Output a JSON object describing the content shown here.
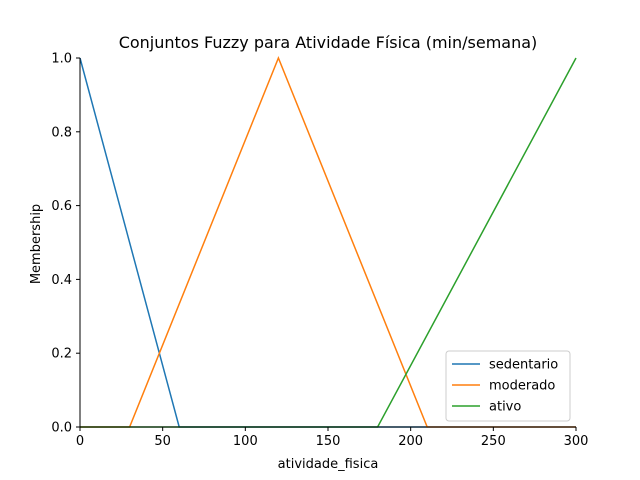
{
  "chart_data": {
    "type": "line",
    "title": "Conjuntos Fuzzy para Atividade Física (min/semana)",
    "xlabel": "atividade_fisica",
    "ylabel": "Membership",
    "xlim": [
      0,
      300
    ],
    "ylim": [
      0,
      1.0
    ],
    "xticks": [
      0,
      50,
      100,
      150,
      200,
      250,
      300
    ],
    "xtick_labels": [
      "0",
      "50",
      "100",
      "150",
      "200",
      "250",
      "300"
    ],
    "yticks": [
      0.0,
      0.2,
      0.4,
      0.6,
      0.8,
      1.0
    ],
    "ytick_labels": [
      "0.0",
      "0.2",
      "0.4",
      "0.6",
      "0.8",
      "1.0"
    ],
    "grid": false,
    "legend_position": "lower-right",
    "series": [
      {
        "name": "sedentario",
        "color": "#1f77b4",
        "x": [
          0,
          60,
          300
        ],
        "y": [
          1,
          0,
          0
        ]
      },
      {
        "name": "moderado",
        "color": "#ff7f0e",
        "x": [
          0,
          30,
          120,
          210,
          300
        ],
        "y": [
          0,
          0,
          1,
          0,
          0
        ]
      },
      {
        "name": "ativo",
        "color": "#2ca02c",
        "x": [
          0,
          180,
          300
        ],
        "y": [
          0,
          0,
          1
        ]
      }
    ]
  }
}
